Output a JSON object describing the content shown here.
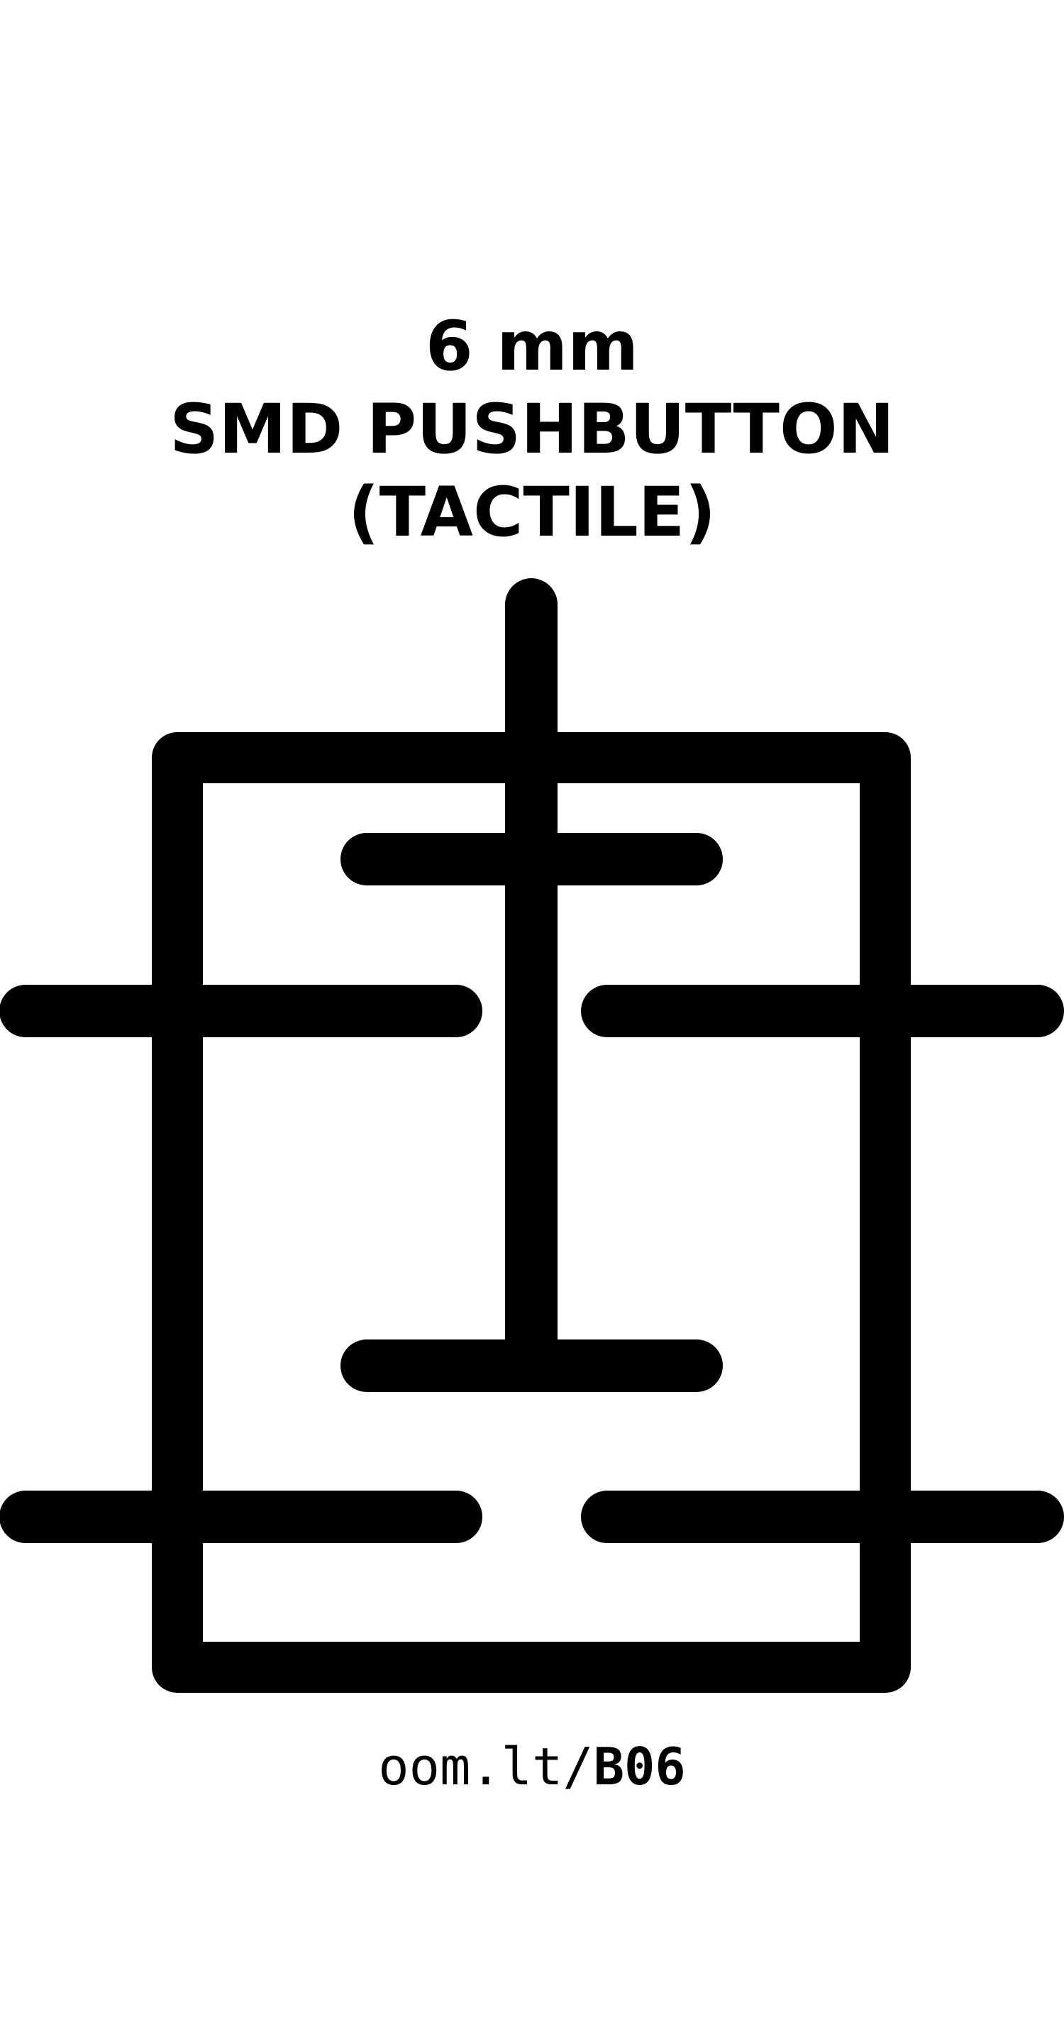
{
  "title": {
    "line1": "6 mm",
    "line2": "SMD PUSHBUTTON",
    "line3": "(TACTILE)"
  },
  "link": {
    "prefix": "oom.lt/",
    "code": "B06"
  },
  "colors": {
    "background": "#ffffff",
    "ink": "#000000"
  }
}
